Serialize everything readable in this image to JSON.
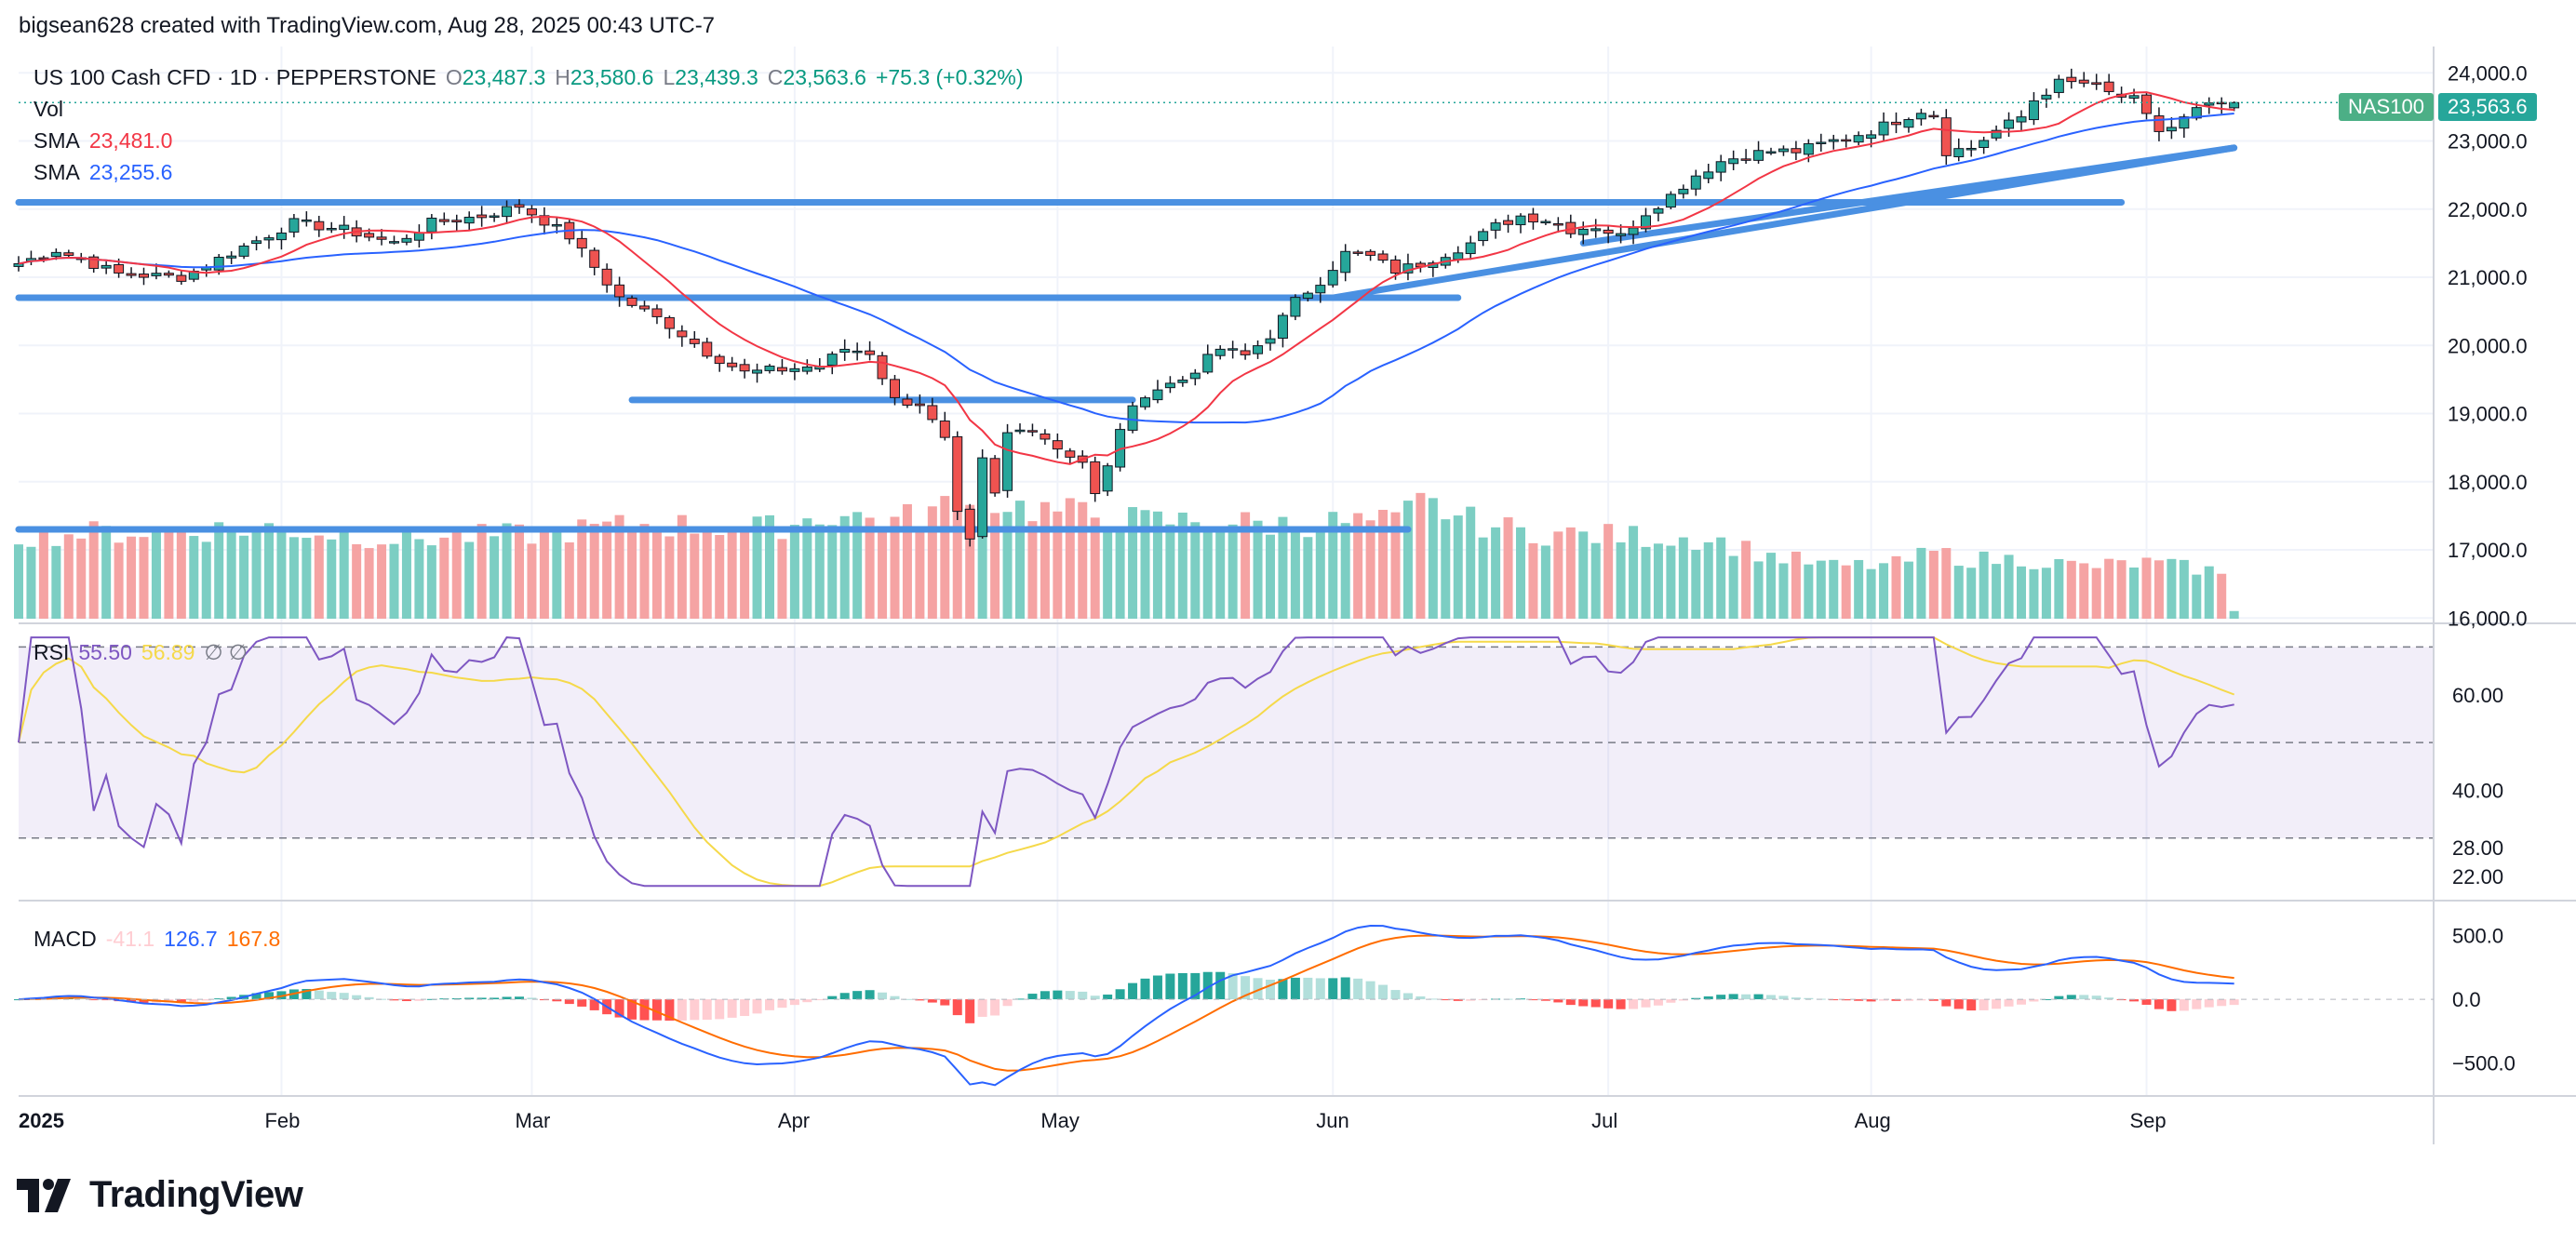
{
  "header": {
    "created_by": "bigsean628 created with TradingView.com, Aug 28, 2025 00:43 UTC-7"
  },
  "legend": {
    "symbol": "US 100 Cash CFD · 1D · PEPPERSTONE",
    "open_label": "O",
    "open": "23,487.3",
    "high_label": "H",
    "high": "23,580.6",
    "low_label": "L",
    "low": "23,439.3",
    "close_label": "C",
    "close": "23,563.6",
    "change": "+75.3 (+0.32%)",
    "vol_label": "Vol",
    "sma1_label": "SMA",
    "sma1_value": "23,481.0",
    "sma2_label": "SMA",
    "sma2_value": "23,255.6",
    "rsi_label": "RSI",
    "rsi_value": "55.50",
    "rsi_ma_value": "56.89",
    "rsi_extra": "∅ ∅",
    "macd_label": "MACD",
    "macd_hist": "-41.1",
    "macd_line": "126.7",
    "macd_signal": "167.8"
  },
  "price_tags": {
    "symbol": "NAS100",
    "last": "23,563.6"
  },
  "footer": {
    "brand": "TradingView"
  },
  "colors": {
    "up": "#26A69A",
    "down": "#EF5350",
    "up_vol": "#7CCEC3",
    "down_vol": "#F5A3A3",
    "sma1": "#F23645",
    "sma2": "#2962FF",
    "trend": "#4A90E2",
    "rsi": "#7E57C2",
    "rsi_ma": "#F5D94A",
    "macd": "#2962FF",
    "signal": "#FF6D00"
  },
  "chart_data": {
    "type": "candlestick",
    "title": "US 100 Cash CFD · 1D · PEPPERSTONE",
    "price_axis": {
      "labels": [
        "24,000.0",
        "23,000.0",
        "22,000.0",
        "21,000.0",
        "20,000.0",
        "19,000.0",
        "18,000.0",
        "17,000.0",
        "16,000.0"
      ],
      "ylim": [
        15990,
        24250
      ]
    },
    "time_axis": {
      "labels": [
        "2025",
        "Feb",
        "Mar",
        "Apr",
        "May",
        "Jun",
        "Jul",
        "Aug",
        "Sep"
      ]
    },
    "rsi_axis": {
      "labels": [
        "60.00",
        "40.00",
        "28.00",
        "22.00"
      ],
      "upper_band": 70,
      "middle": 50,
      "lower_band": 30
    },
    "macd_axis": {
      "labels": [
        "500.0",
        "0.0",
        "−500.0"
      ]
    },
    "anchors": [
      [
        0,
        21200
      ],
      [
        3,
        21400
      ],
      [
        8,
        21050
      ],
      [
        13,
        21000
      ],
      [
        18,
        21450
      ],
      [
        22,
        21800
      ],
      [
        26,
        21700
      ],
      [
        30,
        21500
      ],
      [
        33,
        21800
      ],
      [
        37,
        21900
      ],
      [
        40,
        22050
      ],
      [
        44,
        21600
      ],
      [
        48,
        20700
      ],
      [
        52,
        20300
      ],
      [
        55,
        19900
      ],
      [
        58,
        19600
      ],
      [
        61,
        19650
      ],
      [
        64,
        19700
      ],
      [
        66,
        19950
      ],
      [
        68,
        19900
      ],
      [
        70,
        19200
      ],
      [
        72,
        19150
      ],
      [
        74,
        18600
      ],
      [
        75,
        17500
      ],
      [
        76,
        17100
      ],
      [
        77,
        18300
      ],
      [
        78,
        17800
      ],
      [
        79,
        18700
      ],
      [
        81,
        18800
      ],
      [
        83,
        18500
      ],
      [
        85,
        18300
      ],
      [
        86,
        17800
      ],
      [
        87,
        18200
      ],
      [
        88,
        18800
      ],
      [
        90,
        19300
      ],
      [
        93,
        19500
      ],
      [
        96,
        19950
      ],
      [
        98,
        19850
      ],
      [
        100,
        20150
      ],
      [
        102,
        20650
      ],
      [
        104,
        20950
      ],
      [
        106,
        21350
      ],
      [
        108,
        21300
      ],
      [
        110,
        21100
      ],
      [
        112,
        21200
      ],
      [
        114,
        21350
      ],
      [
        116,
        21500
      ],
      [
        118,
        21750
      ],
      [
        120,
        21900
      ],
      [
        122,
        21850
      ],
      [
        124,
        21700
      ],
      [
        126,
        21750
      ],
      [
        128,
        21600
      ],
      [
        130,
        21950
      ],
      [
        132,
        22200
      ],
      [
        134,
        22500
      ],
      [
        136,
        22700
      ],
      [
        138,
        22800
      ],
      [
        140,
        22850
      ],
      [
        142,
        22850
      ],
      [
        144,
        22950
      ],
      [
        146,
        23050
      ],
      [
        148,
        23150
      ],
      [
        150,
        23300
      ],
      [
        152,
        23450
      ],
      [
        153,
        23400
      ],
      [
        154,
        22850
      ],
      [
        156,
        22900
      ],
      [
        158,
        23150
      ],
      [
        160,
        23350
      ],
      [
        161,
        23600
      ],
      [
        163,
        23850
      ],
      [
        165,
        23850
      ],
      [
        167,
        23700
      ],
      [
        169,
        23600
      ],
      [
        170,
        23350
      ],
      [
        171,
        23150
      ],
      [
        172,
        23200
      ],
      [
        174,
        23450
      ],
      [
        175,
        23500
      ],
      [
        176,
        23540
      ],
      [
        177,
        23563
      ]
    ],
    "volume_anchors": [
      [
        0,
        120
      ],
      [
        10,
        125
      ],
      [
        20,
        130
      ],
      [
        30,
        115
      ],
      [
        40,
        120
      ],
      [
        50,
        135
      ],
      [
        60,
        130
      ],
      [
        65,
        150
      ],
      [
        70,
        140
      ],
      [
        74,
        160
      ],
      [
        76,
        190
      ],
      [
        78,
        170
      ],
      [
        80,
        160
      ],
      [
        85,
        150
      ],
      [
        90,
        140
      ],
      [
        95,
        140
      ],
      [
        100,
        135
      ],
      [
        105,
        138
      ],
      [
        110,
        138
      ],
      [
        112,
        165
      ],
      [
        114,
        155
      ],
      [
        116,
        140
      ],
      [
        120,
        125
      ],
      [
        125,
        120
      ],
      [
        130,
        118
      ],
      [
        135,
        115
      ],
      [
        140,
        90
      ],
      [
        145,
        75
      ],
      [
        150,
        78
      ],
      [
        153,
        95
      ],
      [
        156,
        85
      ],
      [
        160,
        85
      ],
      [
        165,
        75
      ],
      [
        170,
        80
      ],
      [
        175,
        70
      ],
      [
        176,
        60
      ],
      [
        177,
        12
      ]
    ],
    "trend_lines": [
      {
        "from": [
          0,
          22100
        ],
        "to": [
          168,
          22100
        ]
      },
      {
        "from": [
          0,
          20700
        ],
        "to": [
          115,
          20700
        ]
      },
      {
        "from": [
          49,
          19200
        ],
        "to": [
          89,
          19200
        ]
      },
      {
        "from": [
          0,
          17300
        ],
        "to": [
          111,
          17300
        ]
      },
      {
        "from": [
          105,
          20700
        ],
        "to": [
          177,
          22900
        ]
      },
      {
        "from": [
          125,
          21500
        ],
        "to": [
          177,
          22900
        ]
      }
    ],
    "sma1_period": 10,
    "sma2_period": 30,
    "rsi_period": 14,
    "macd": {
      "fast": 12,
      "slow": 26,
      "signal": 9
    }
  }
}
